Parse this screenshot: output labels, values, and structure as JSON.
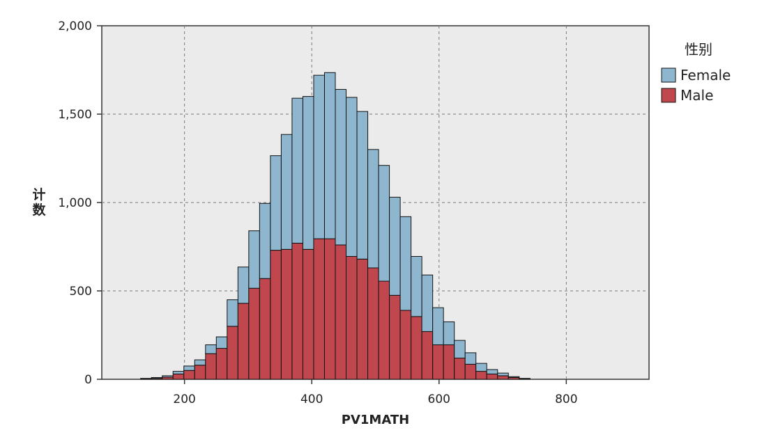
{
  "chart_data": {
    "type": "bar",
    "subtype": "stacked-histogram",
    "xlabel": "PV1MATH",
    "ylabel": "计数",
    "xlim": [
      70,
      930
    ],
    "ylim": [
      0,
      2000
    ],
    "bin_width": 17,
    "x_ticks": [
      {
        "value": 200,
        "label": "200"
      },
      {
        "value": 400,
        "label": "400"
      },
      {
        "value": 600,
        "label": "600"
      },
      {
        "value": 800,
        "label": "800"
      }
    ],
    "y_ticks": [
      {
        "value": 0,
        "label": "0"
      },
      {
        "value": 500,
        "label": "500"
      },
      {
        "value": 1000,
        "label": "1,000"
      },
      {
        "value": 1500,
        "label": "1,500"
      },
      {
        "value": 2000,
        "label": "2,000"
      }
    ],
    "grid": true,
    "legend": {
      "title": "性别",
      "placement": "right"
    },
    "bin_starts": [
      131,
      148,
      165,
      182,
      199,
      216,
      233,
      250,
      267,
      284,
      301,
      318,
      335,
      352,
      369,
      386,
      403,
      420,
      437,
      454,
      471,
      488,
      505,
      522,
      539,
      556,
      573,
      590,
      607,
      624,
      641,
      658,
      675,
      692,
      709,
      726
    ],
    "series": [
      {
        "name": "Male",
        "color": "#c0474d",
        "values": [
          3,
          5,
          12,
          30,
          50,
          80,
          145,
          175,
          300,
          430,
          515,
          570,
          730,
          735,
          770,
          735,
          795,
          795,
          760,
          695,
          680,
          630,
          555,
          475,
          390,
          355,
          270,
          195,
          195,
          120,
          85,
          45,
          30,
          20,
          10,
          3
        ]
      },
      {
        "name": "Female",
        "color": "#8fb6cf",
        "values": [
          2,
          5,
          8,
          15,
          25,
          30,
          50,
          65,
          150,
          205,
          325,
          425,
          535,
          650,
          820,
          865,
          925,
          940,
          880,
          900,
          835,
          670,
          655,
          555,
          530,
          340,
          320,
          210,
          130,
          100,
          65,
          45,
          25,
          15,
          5,
          2
        ]
      }
    ]
  }
}
